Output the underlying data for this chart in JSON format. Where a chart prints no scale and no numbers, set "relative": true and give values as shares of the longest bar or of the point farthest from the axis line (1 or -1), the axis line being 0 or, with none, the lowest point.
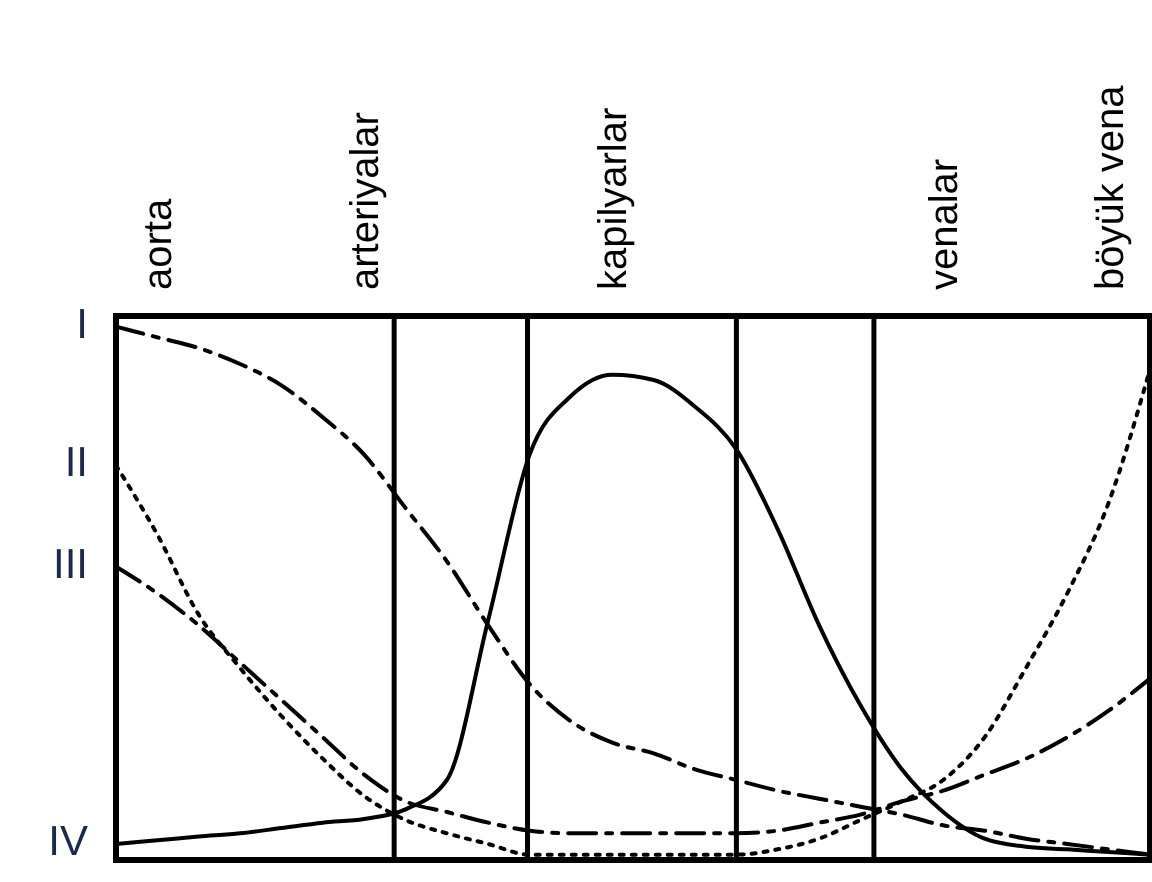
{
  "chart_data": {
    "type": "line",
    "relative": true,
    "tick_labels": "x",
    "categories": [
      null,
      "aorta",
      null,
      null,
      null,
      null,
      "arteriyalar",
      null,
      null,
      null,
      null,
      null,
      "kapilyarlar",
      null,
      null,
      null,
      null,
      null,
      null,
      null,
      "venalar",
      null,
      null,
      null,
      "böyük vena",
      null
    ],
    "marker": "none",
    "series": [
      {
        "name": "I",
        "color": "#000000",
        "line_style": "dashed",
        "values": [
          1.0,
          0.98,
          0.96,
          0.93,
          0.89,
          0.83,
          0.76,
          0.66,
          0.56,
          0.44,
          0.33,
          0.26,
          0.22,
          0.2,
          0.17,
          0.15,
          0.13,
          0.115,
          0.1,
          0.085,
          0.065,
          0.055,
          0.04,
          0.03,
          0.02,
          0.01
        ]
      },
      {
        "name": "II",
        "color": "#000000",
        "line_style": "dotted",
        "values": [
          0.74,
          0.61,
          0.46,
          0.36,
          0.27,
          0.19,
          0.12,
          0.075,
          0.05,
          0.03,
          0.01,
          0.01,
          0.01,
          0.01,
          0.01,
          0.01,
          0.02,
          0.04,
          0.075,
          0.11,
          0.15,
          0.23,
          0.36,
          0.5,
          0.67,
          0.92
        ]
      },
      {
        "name": "III",
        "color": "#000000",
        "line_style": "dashed",
        "values": [
          0.55,
          0.5,
          0.44,
          0.37,
          0.3,
          0.23,
          0.16,
          0.11,
          0.09,
          0.07,
          0.055,
          0.05,
          0.05,
          0.05,
          0.05,
          0.05,
          0.055,
          0.07,
          0.085,
          0.11,
          0.13,
          0.16,
          0.19,
          0.23,
          0.28,
          0.34
        ]
      },
      {
        "name": "IV",
        "color": "#000000",
        "line_style": "solid",
        "values": [
          0.03,
          0.037,
          0.044,
          0.05,
          0.06,
          0.07,
          0.077,
          0.095,
          0.15,
          0.45,
          0.76,
          0.87,
          0.91,
          0.9,
          0.85,
          0.77,
          0.62,
          0.44,
          0.29,
          0.17,
          0.09,
          0.04,
          0.025,
          0.02,
          0.015,
          0.01
        ]
      }
    ]
  }
}
